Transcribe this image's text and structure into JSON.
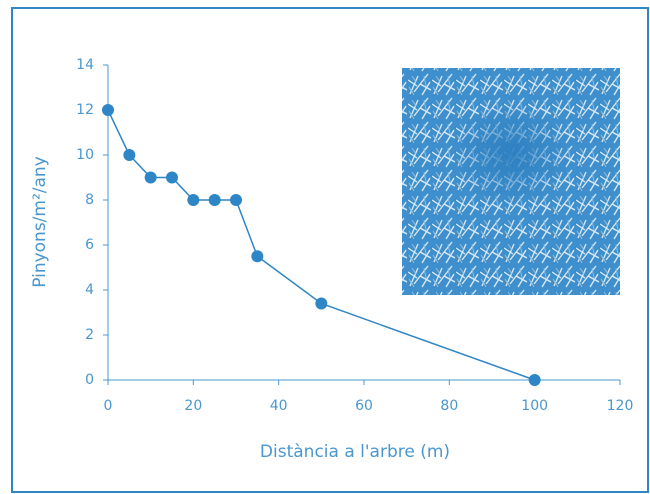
{
  "chart_data": {
    "type": "line",
    "x_label": "Distància a l'arbre (m)",
    "y_label": "Pinyons/m²/any",
    "x": [
      0,
      5,
      10,
      15,
      20,
      25,
      30,
      35,
      50,
      100
    ],
    "series": [
      {
        "color": "#2f86c6",
        "values": [
          12,
          10,
          9,
          9,
          8,
          8,
          8,
          5.5,
          3.4,
          0
        ]
      }
    ],
    "xlim": [
      0,
      120
    ],
    "xticks": [
      0,
      20,
      40,
      60,
      80,
      100,
      120
    ],
    "ylim": [
      0,
      14
    ],
    "yticks": [
      0,
      2,
      4,
      6,
      8,
      10,
      12,
      14
    ]
  }
}
